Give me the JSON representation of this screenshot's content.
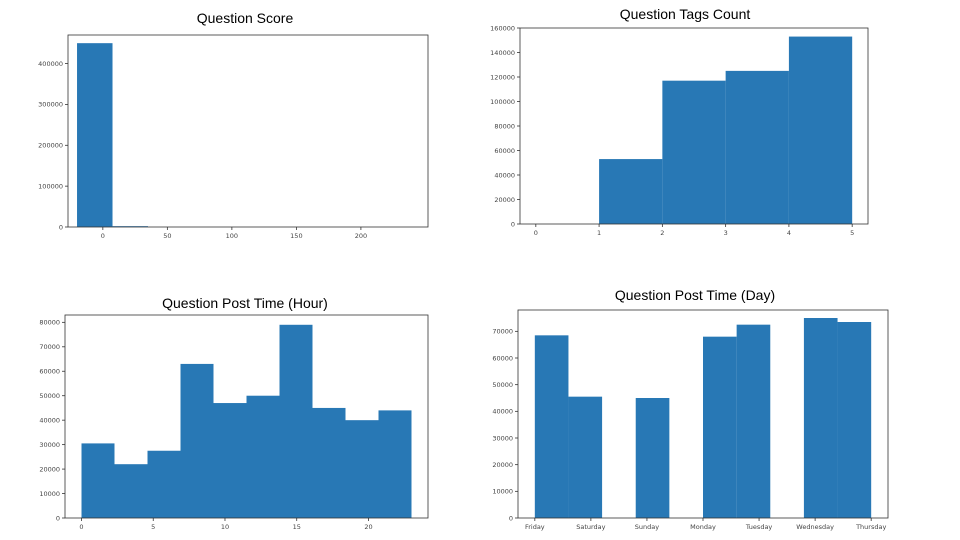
{
  "chart_data": [
    {
      "type": "bar",
      "title": "Question Score",
      "bins": [
        [
          -20,
          7.5
        ],
        [
          7.5,
          35
        ]
      ],
      "values": [
        450000,
        2000
      ],
      "xlim": [
        -27,
        252
      ],
      "ylim": [
        0,
        470000
      ],
      "xticks": [
        0,
        50,
        100,
        150,
        200
      ],
      "yticks": [
        0,
        100000,
        200000,
        300000,
        400000
      ],
      "color": "#2878b5"
    },
    {
      "type": "bar",
      "title": "Question Tags Count",
      "bins": [
        [
          1,
          2
        ],
        [
          2,
          3
        ],
        [
          3,
          4
        ],
        [
          4,
          5
        ]
      ],
      "values": [
        53000,
        117000,
        125000,
        153000
      ],
      "xlim": [
        -0.25,
        5.25
      ],
      "ylim": [
        0,
        160000
      ],
      "xticks": [
        0,
        1,
        2,
        3,
        4,
        5
      ],
      "yticks": [
        0,
        20000,
        40000,
        60000,
        80000,
        100000,
        120000,
        140000,
        160000
      ],
      "color": "#2878b5"
    },
    {
      "type": "bar",
      "title": "Question Post Time (Hour)",
      "bins": [
        [
          0,
          2.3
        ],
        [
          2.3,
          4.6
        ],
        [
          4.6,
          6.9
        ],
        [
          6.9,
          9.2
        ],
        [
          9.2,
          11.5
        ],
        [
          11.5,
          13.8
        ],
        [
          13.8,
          16.1
        ],
        [
          16.1,
          18.4
        ],
        [
          18.4,
          20.7
        ],
        [
          20.7,
          23
        ]
      ],
      "values": [
        30500,
        22000,
        27500,
        63000,
        47000,
        50000,
        79000,
        45000,
        40000,
        44000
      ],
      "xlim": [
        -1.15,
        24.15
      ],
      "ylim": [
        0,
        83000
      ],
      "xticks": [
        0,
        5,
        10,
        15,
        20
      ],
      "yticks": [
        0,
        10000,
        20000,
        30000,
        40000,
        50000,
        60000,
        70000,
        80000
      ],
      "color": "#2878b5"
    },
    {
      "type": "bar",
      "title": "Question Post Time (Day)",
      "bins": [
        [
          0,
          0.6
        ],
        [
          0.6,
          1.2
        ],
        [
          1.8,
          2.4
        ],
        [
          3.0,
          3.6
        ],
        [
          3.6,
          4.2
        ],
        [
          4.8,
          5.4
        ],
        [
          5.4,
          6.0
        ]
      ],
      "values": [
        68500,
        45500,
        45000,
        68000,
        72500,
        75000,
        73500
      ],
      "xlim": [
        -0.3,
        6.3
      ],
      "ylim": [
        0,
        78000
      ],
      "xticks": [
        {
          "v": 0,
          "label": "Friday"
        },
        {
          "v": 1,
          "label": "Saturday"
        },
        {
          "v": 2,
          "label": "Sunday"
        },
        {
          "v": 3,
          "label": "Monday"
        },
        {
          "v": 4,
          "label": "Tuesday"
        },
        {
          "v": 5,
          "label": "Wednesday"
        },
        {
          "v": 6,
          "label": "Thursday"
        }
      ],
      "yticks": [
        0,
        10000,
        20000,
        30000,
        40000,
        50000,
        60000,
        70000
      ],
      "color": "#2878b5"
    }
  ]
}
